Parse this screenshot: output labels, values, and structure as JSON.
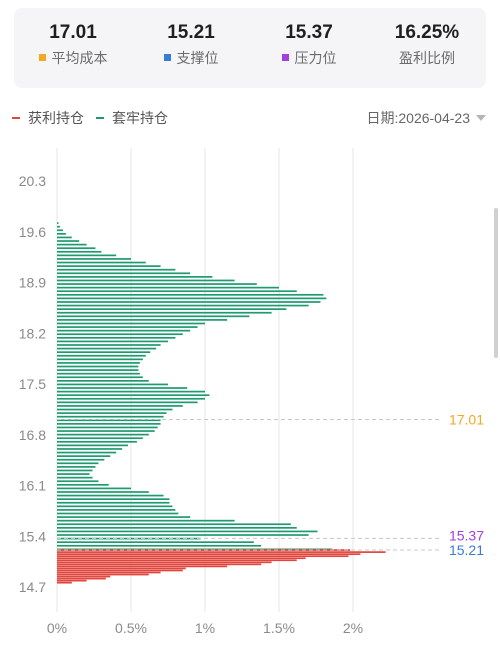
{
  "stats": [
    {
      "value": "17.01",
      "label": "平均成本",
      "color": "#f5a623"
    },
    {
      "value": "15.21",
      "label": "支撑位",
      "color": "#3a7bd5"
    },
    {
      "value": "15.37",
      "label": "压力位",
      "color": "#a33ee0"
    },
    {
      "value": "16.25%",
      "label": "盈利比例",
      "color": ""
    }
  ],
  "legend": {
    "profit_label": "获利持仓",
    "loss_label": "套牢持仓",
    "profit_color": "#e0463d",
    "loss_color": "#1f9a6e"
  },
  "date_selector": {
    "text": "日期:2026-04-23"
  },
  "chart_data": {
    "type": "bar",
    "orientation": "horizontal",
    "y_ticks": [
      "20.3",
      "19.6",
      "18.9",
      "18.2",
      "17.5",
      "16.8",
      "16.1",
      "15.4",
      "14.7"
    ],
    "x_ticks": [
      "0%",
      "0.5%",
      "1%",
      "1.5%",
      "2%"
    ],
    "xlim": [
      0,
      2.5
    ],
    "ylim": [
      14.5,
      20.6
    ],
    "grid": true,
    "reference_lines": [
      {
        "price": 17.01,
        "label": "17.01",
        "color": "#f5a623"
      },
      {
        "price": 15.37,
        "label": "15.37",
        "color": "#a33ee0"
      },
      {
        "price": 15.21,
        "label": "15.21",
        "color": "#3a7bd5"
      }
    ],
    "series": [
      {
        "name": "套牢持仓",
        "color": "#1f9a6e",
        "price_from": 19.72,
        "price_to": 15.22,
        "values": [
          0.01,
          0.02,
          0.04,
          0.06,
          0.1,
          0.15,
          0.2,
          0.26,
          0.3,
          0.4,
          0.5,
          0.6,
          0.7,
          0.8,
          0.9,
          1.05,
          1.2,
          1.35,
          1.5,
          1.62,
          1.8,
          1.82,
          1.78,
          1.7,
          1.55,
          1.45,
          1.3,
          1.15,
          1.0,
          0.95,
          0.9,
          0.85,
          0.8,
          0.75,
          0.7,
          0.67,
          0.63,
          0.6,
          0.58,
          0.56,
          0.55,
          0.55,
          0.56,
          0.58,
          0.62,
          0.75,
          0.88,
          1.0,
          1.03,
          1.0,
          0.95,
          0.85,
          0.78,
          0.74,
          0.72,
          0.7,
          0.7,
          0.68,
          0.66,
          0.62,
          0.58,
          0.54,
          0.48,
          0.44,
          0.4,
          0.36,
          0.32,
          0.28,
          0.26,
          0.24,
          0.22,
          0.24,
          0.28,
          0.35,
          0.5,
          0.62,
          0.72,
          0.76,
          0.76,
          0.78,
          0.8,
          0.82,
          0.9,
          1.2,
          1.58,
          1.62,
          1.76,
          1.7,
          0.97,
          1.33,
          1.38,
          1.86
        ]
      },
      {
        "name": "获利持仓",
        "color": "#e0463d",
        "price_from": 15.21,
        "price_to": 14.76,
        "values": [
          1.98,
          2.22,
          2.05,
          1.97,
          1.68,
          1.62,
          1.45,
          1.38,
          1.15,
          0.87,
          0.85,
          0.7,
          0.62,
          0.36,
          0.33,
          0.2,
          0.1
        ]
      }
    ]
  }
}
